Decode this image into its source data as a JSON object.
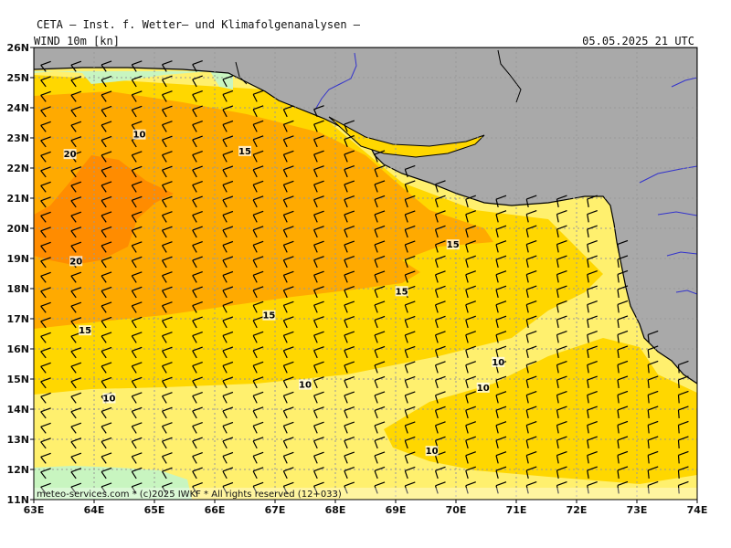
{
  "header": {
    "title": "CETA — Inst. f. Wetter— und Klimafolgenanalysen —",
    "field": "WIND 10m [kn]",
    "valid_time": "05.05.2025 21 UTC"
  },
  "footer": {
    "credit": "meteo-services.com * (c)2025 IWKF * All rights reserved (12+033)"
  },
  "axes": {
    "lon_ticks": [
      "63E",
      "64E",
      "65E",
      "66E",
      "67E",
      "68E",
      "69E",
      "70E",
      "71E",
      "72E",
      "73E",
      "74E"
    ],
    "lat_ticks": [
      "26N",
      "25N",
      "24N",
      "23N",
      "22N",
      "21N",
      "20N",
      "19N",
      "18N",
      "17N",
      "16N",
      "15N",
      "14N",
      "13N",
      "12N",
      "11N"
    ],
    "lon_range": [
      63,
      74
    ],
    "lat_range": [
      11,
      26
    ],
    "grid": "dotted"
  },
  "colors": {
    "land": "#a9a9a9",
    "coast": "#000000",
    "rivers": "#3333cc",
    "band_5_10": "#c8f5c0",
    "band_10_15": "#fff06e",
    "band_15_20": "#ffd700",
    "band_20_25": "#ffaa00",
    "band_25_plus": "#ff8c00",
    "grid": "#999999"
  },
  "contour_labels": [
    {
      "text": "20",
      "lon": 63.6,
      "lat": 22.45
    },
    {
      "text": "10",
      "lon": 64.75,
      "lat": 23.1
    },
    {
      "text": "15",
      "lon": 66.5,
      "lat": 22.55
    },
    {
      "text": "20",
      "lon": 63.7,
      "lat": 18.9
    },
    {
      "text": "15",
      "lon": 69.95,
      "lat": 19.45
    },
    {
      "text": "15",
      "lon": 69.1,
      "lat": 17.9
    },
    {
      "text": "15",
      "lon": 66.9,
      "lat": 17.1
    },
    {
      "text": "15",
      "lon": 63.85,
      "lat": 16.6
    },
    {
      "text": "10",
      "lon": 70.7,
      "lat": 15.55
    },
    {
      "text": "10",
      "lon": 67.5,
      "lat": 14.8
    },
    {
      "text": "10",
      "lon": 70.45,
      "lat": 14.7
    },
    {
      "text": "10",
      "lon": 64.25,
      "lat": 14.35
    },
    {
      "text": "10",
      "lon": 69.6,
      "lat": 12.6
    }
  ]
}
